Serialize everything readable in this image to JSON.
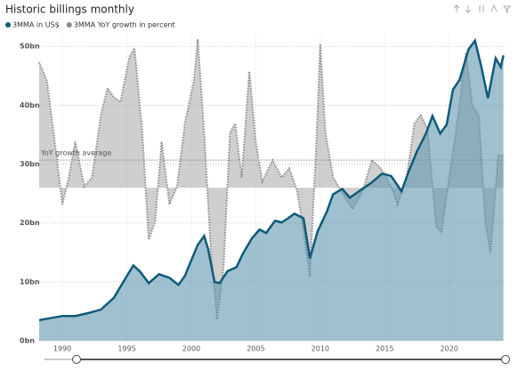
{
  "chart_data": {
    "type": "area",
    "title": "Historic billings monthly",
    "annotation": "YoY growth average",
    "average": 9,
    "xlim": [
      1988.2,
      2024.3
    ],
    "xticks": [
      1990,
      1995,
      2000,
      2005,
      2010,
      2015,
      2020
    ],
    "ylim": [
      0,
      52
    ],
    "yticks": [
      {
        "value": 0,
        "label": "0bn"
      },
      {
        "value": 10,
        "label": "10bn"
      },
      {
        "value": 20,
        "label": "20bn"
      },
      {
        "value": 30,
        "label": "30bn"
      },
      {
        "value": 40,
        "label": "40bn"
      },
      {
        "value": 50,
        "label": "50bn"
      }
    ],
    "y2lim": [
      -50,
      50
    ],
    "grid": true,
    "series": [
      {
        "name": "3MMA YoY growth in percent",
        "color": "#8c8c8c",
        "axis": "y2",
        "x": [
          1988.2,
          1988.8,
          1989.5,
          1990,
          1990.5,
          1991,
          1991.7,
          1992.3,
          1993,
          1993.5,
          1994,
          1994.5,
          1995.2,
          1995.6,
          1996.2,
          1996.7,
          1997.2,
          1997.7,
          1998.3,
          1998.9,
          1999.5,
          2000.2,
          2000.5,
          2001,
          2001.5,
          2002,
          2002.5,
          2003,
          2003.4,
          2003.9,
          2004.5,
          2005,
          2005.5,
          2006.3,
          2007,
          2007.6,
          2008.2,
          2008.8,
          2009.2,
          2009.7,
          2010,
          2010.4,
          2011,
          2011.6,
          2012.5,
          2013.3,
          2014,
          2014.7,
          2015.5,
          2016,
          2016.7,
          2017.3,
          2017.8,
          2018.3,
          2019,
          2019.4,
          2020,
          2020.7,
          2021.3,
          2021.8,
          2022.3,
          2022.8,
          2023.2,
          2023.8,
          2024.2
        ],
        "values": [
          41,
          35,
          12,
          -5.4,
          3.4,
          15,
          0.4,
          3.4,
          24,
          32.5,
          29.6,
          28,
          42.7,
          45.6,
          18,
          -17,
          -11,
          15,
          -5.4,
          0.4,
          21,
          35,
          48.5,
          18,
          -20,
          -43,
          -26,
          18,
          21,
          3.4,
          38,
          15,
          2,
          9,
          3.4,
          6.3,
          -1,
          -17,
          -29,
          15,
          47,
          18,
          3.4,
          -1,
          -7,
          -1,
          9,
          6.3,
          0.4,
          -5.4,
          3.4,
          21,
          23.7,
          19.4,
          -12.7,
          -14.7,
          3.4,
          23.7,
          44,
          26.7,
          23.7,
          -11,
          -21.4,
          10.6,
          10.6
        ]
      },
      {
        "name": "3MMA in US$",
        "color": "#0d5b7a",
        "x": [
          1988.2,
          1990,
          1991,
          1992,
          1993,
          1994,
          1995,
          1995.5,
          1996,
          1996.7,
          1997.5,
          1998.3,
          1999,
          1999.5,
          2000,
          2000.5,
          2001,
          2001.3,
          2001.8,
          2002.2,
          2002.8,
          2003.5,
          2004,
          2004.7,
          2005.3,
          2005.8,
          2006.5,
          2007,
          2007.5,
          2008,
          2008.7,
          2009.2,
          2009.8,
          2010.5,
          2011,
          2011.7,
          2012.3,
          2013,
          2014,
          2014.8,
          2015.5,
          2016.3,
          2016.8,
          2017.5,
          2018.2,
          2018.7,
          2019.3,
          2019.8,
          2020.3,
          2020.8,
          2021.5,
          2022,
          2022.5,
          2023,
          2023.6,
          2024,
          2024.2
        ],
        "values": [
          3.5,
          4.2,
          4.2,
          4.7,
          5.3,
          7.3,
          11,
          12.8,
          11.8,
          9.8,
          11.3,
          10.7,
          9.5,
          11,
          13.7,
          16.3,
          17.8,
          15.6,
          10,
          9.8,
          11.8,
          12.5,
          14.8,
          17.4,
          18.9,
          18.3,
          20.4,
          20.1,
          20.8,
          21.6,
          20.8,
          14,
          18.6,
          21.9,
          24.9,
          25.8,
          24.3,
          25.4,
          26.9,
          28.4,
          28,
          25.4,
          28.4,
          32.2,
          35.2,
          38.2,
          35.2,
          36.7,
          42.7,
          44.3,
          49.5,
          51,
          46.5,
          41.2,
          48,
          46.5,
          48.5
        ]
      }
    ]
  }
}
